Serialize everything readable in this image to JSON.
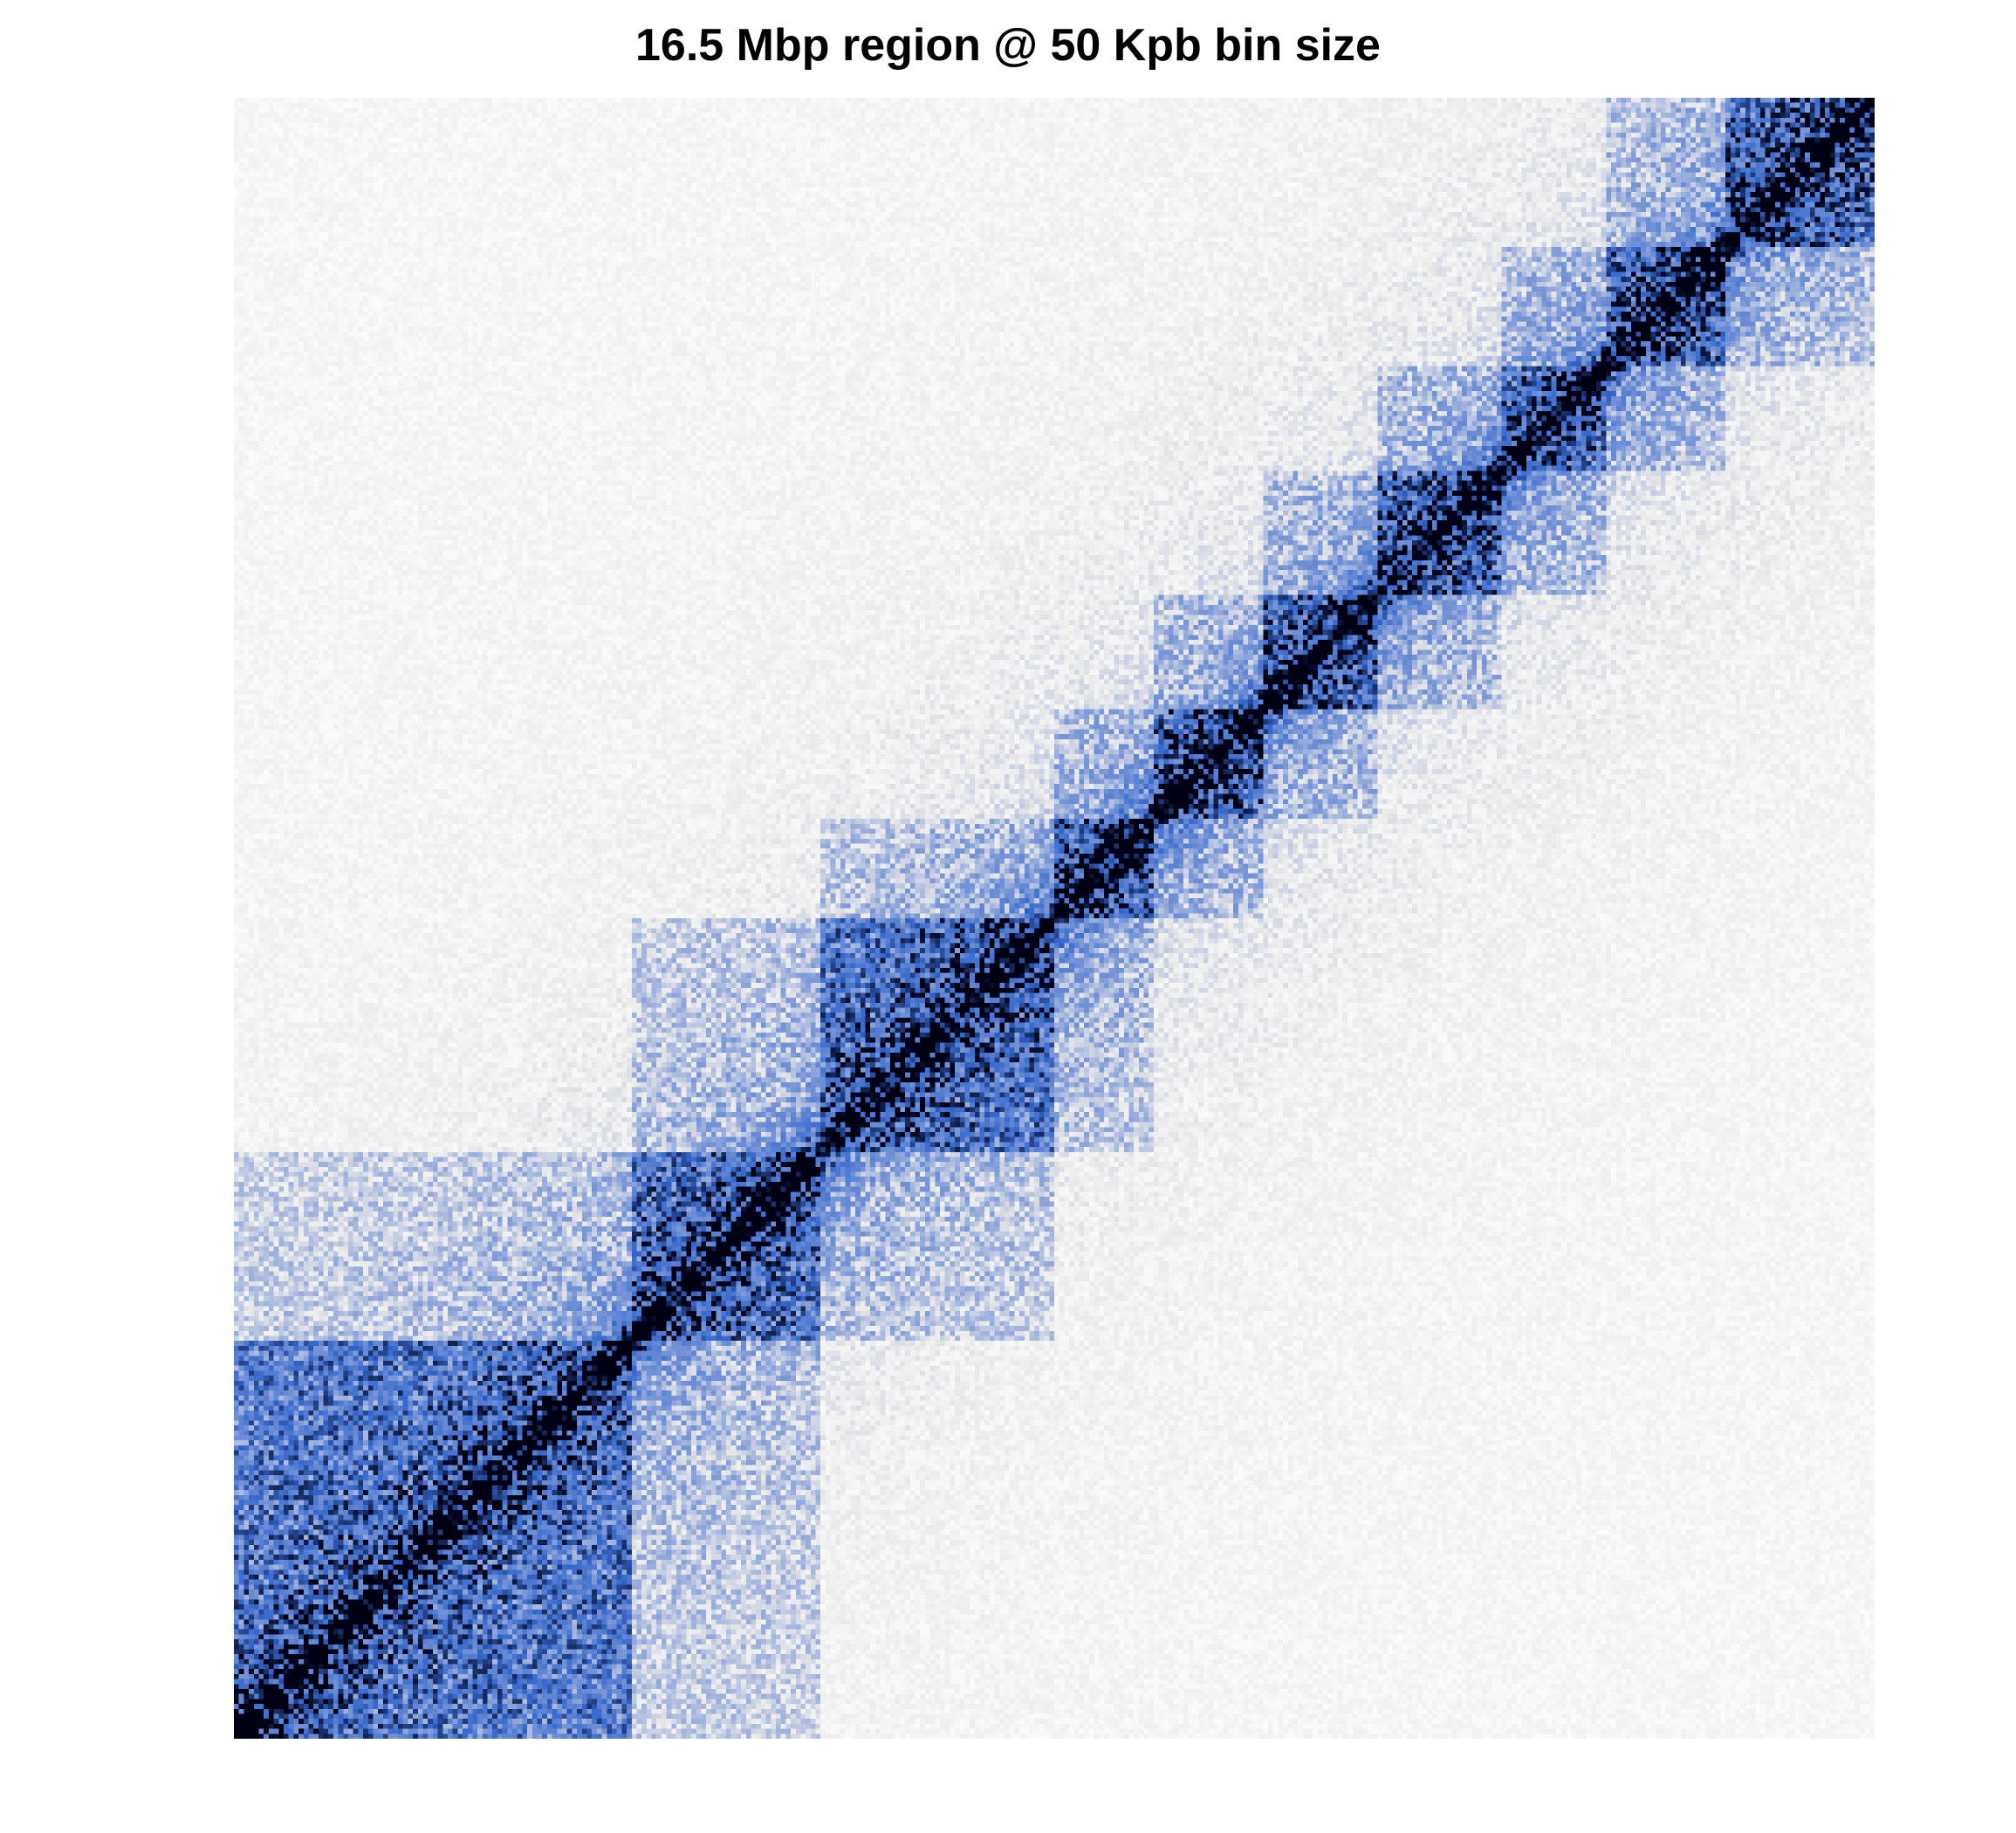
{
  "chart_data": {
    "type": "heatmap",
    "title": "16.5 Mbp region @ 50 Kpb bin size",
    "region_size_mbp": 16.5,
    "bin_size_kbp": 50,
    "n_bins": 330,
    "matrix_description": "symmetric contact matrix; diagonal drawn from bottom-left to top-right",
    "domains_bins": [
      [
        0,
        80
      ],
      [
        80,
        118
      ],
      [
        118,
        165
      ],
      [
        165,
        185
      ],
      [
        185,
        207
      ],
      [
        207,
        230
      ],
      [
        230,
        255
      ],
      [
        255,
        276
      ],
      [
        276,
        300
      ],
      [
        300,
        330
      ]
    ],
    "colorscale": [
      "#ffffff",
      "#c8c8cc",
      "#3f6fcf",
      "#000000"
    ],
    "grid": false,
    "legend": "none"
  }
}
